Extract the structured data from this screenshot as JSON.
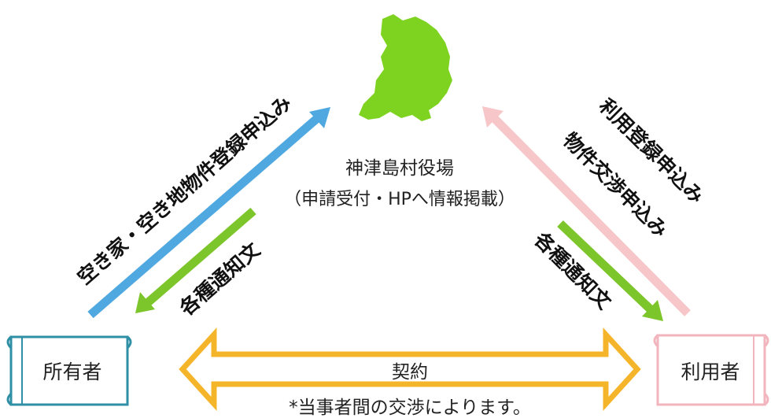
{
  "center": {
    "title": "神津島村役場",
    "subtitle": "（申請受付・HPへ情報掲載）"
  },
  "owner": {
    "label": "所有者"
  },
  "user": {
    "label": "利用者"
  },
  "arrows": {
    "owner_to_office": "空き家・空き地物件登録申込み",
    "office_to_owner": "各種通知文",
    "user_to_office_line1": "利用登録申込み",
    "user_to_office_line2": "物件交渉申込み",
    "office_to_user": "各種通知文"
  },
  "contract": {
    "label": "契約",
    "note": "*当事者間の交渉によります。"
  },
  "colors": {
    "island": "#7ed321",
    "blue_arrow": "#4fa8e0",
    "pink_arrow": "#f7c6c9",
    "green_arrow": "#7cc52a",
    "orange_arrow": "#f5b52a",
    "owner_scroll": "#2f8fa5",
    "user_scroll": "#f2b4bd"
  }
}
